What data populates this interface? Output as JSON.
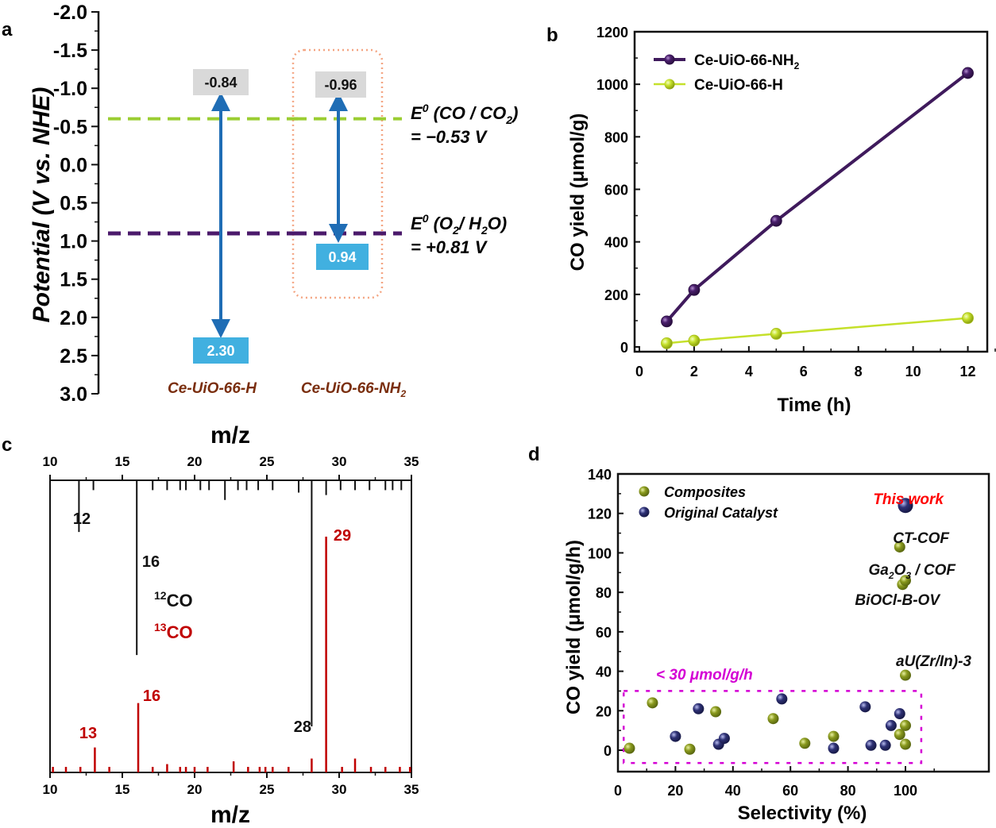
{
  "figure": {
    "panel_labels": [
      "a",
      "b",
      "c",
      "d"
    ]
  },
  "chart_data": [
    {
      "panel": "a",
      "type": "diagram",
      "title": "",
      "ylabel": "Potential (V vs. NHE)",
      "ylim": [
        -2.0,
        3.0
      ],
      "y_inverted": true,
      "yticks": [
        "-2.0",
        "-1.5",
        "-1.0",
        "-0.5",
        "0.0",
        "0.5",
        "1.0",
        "1.5",
        "2.0",
        "2.5",
        "3.0"
      ],
      "reference_lines": [
        {
          "name": "E0 (CO / CO2) = -0.53 V",
          "label_line1": "E0 (CO / CO2)",
          "label_line2": "= −0.53 V",
          "value": -0.53,
          "drawn_at": -0.6,
          "color": "#9ACD32"
        },
        {
          "name": "E0 (O2 / H2O) = +0.81 V",
          "label_line1": "E0 (O2 / H2O)",
          "label_line2": "= +0.81 V",
          "value": 0.81,
          "drawn_at": 0.9,
          "color": "#4B1A6B"
        }
      ],
      "materials": [
        {
          "name": "Ce-UiO-66-H",
          "cb": -0.84,
          "vb": 2.3,
          "cb_label": "-0.84",
          "vb_label": "2.30",
          "highlighted": false
        },
        {
          "name": "Ce-UiO-66-NH2",
          "cb": -0.96,
          "vb": 0.94,
          "cb_label": "-0.96",
          "vb_label": "0.94",
          "highlighted": true
        }
      ],
      "colors": {
        "arrow": "#1F6DB5",
        "cb_box": "#D9D9D9",
        "vb_box": "#41B0E0",
        "material_label": "#7A2E0E",
        "highlight_box": "#F4A582"
      }
    },
    {
      "panel": "b",
      "type": "line",
      "title": "",
      "xlabel": "Time (h)",
      "ylabel": "CO yield (μmol/g)",
      "xlim": [
        0,
        13
      ],
      "ylim": [
        0,
        1200
      ],
      "xticks": [
        0,
        2,
        4,
        6,
        8,
        10,
        12
      ],
      "yticks": [
        0,
        200,
        400,
        600,
        800,
        1000,
        1200
      ],
      "legend": "top-left",
      "series": [
        {
          "name": "Ce-UiO-66-NH2",
          "label_main": "Ce-UiO-66-NH",
          "label_sub": "2",
          "color": "#3F1A5C",
          "x": [
            1,
            2,
            5,
            12
          ],
          "values": [
            97,
            217,
            480,
            1043
          ]
        },
        {
          "name": "Ce-UiO-66-H",
          "label_main": "Ce-UiO-66-H",
          "label_sub": "",
          "color": "#C5E02A",
          "x": [
            1,
            2,
            5,
            12
          ],
          "values": [
            14,
            24,
            50,
            110
          ]
        }
      ]
    },
    {
      "panel": "c",
      "type": "bar",
      "title": "",
      "xlabel_top": "m/z",
      "xlabel_bottom": "m/z",
      "xlim": [
        10,
        35
      ],
      "xticks": [
        10,
        15,
        20,
        25,
        30,
        35
      ],
      "legend_items": [
        {
          "mass": "12",
          "species": "CO",
          "color": "#111111"
        },
        {
          "mass": "13",
          "species": "CO",
          "color": "#C00000"
        }
      ],
      "series": [
        {
          "name": "12CO",
          "color": "#111111",
          "direction": "down-from-top",
          "x": [
            10,
            12,
            13,
            16,
            17.1,
            18.1,
            19,
            19.4,
            20.4,
            21,
            22.1,
            23,
            23.6,
            24.4,
            25.4,
            27.2,
            28.1,
            29.1,
            30.1,
            31.1,
            32.1,
            33.2,
            33.7,
            34.3,
            35
          ],
          "values": [
            0.03,
            0.21,
            0.04,
            0.71,
            0.04,
            0.04,
            0.04,
            0.04,
            0.04,
            0.04,
            0.08,
            0.04,
            0.04,
            0.04,
            0.04,
            0.05,
            1.0,
            0.06,
            0.04,
            0.04,
            0.04,
            0.04,
            0.04,
            0.04,
            0.04
          ],
          "peak_labels": [
            {
              "x": 12,
              "label": "12"
            },
            {
              "x": 16,
              "label": "16"
            },
            {
              "x": 28,
              "label": "28"
            }
          ]
        },
        {
          "name": "13CO",
          "color": "#C00000",
          "direction": "up-from-bottom",
          "x": [
            10.2,
            11.1,
            12.1,
            13.1,
            14.1,
            16.1,
            17.1,
            18.1,
            19,
            19.4,
            20,
            20.9,
            22.7,
            23.7,
            24.5,
            24.9,
            25.4,
            26.5,
            28.1,
            29.1,
            30.2,
            31.1,
            32.2,
            33.2,
            34.2,
            34.9
          ],
          "values": [
            0.02,
            0.02,
            0.02,
            0.09,
            0.02,
            0.25,
            0.02,
            0.03,
            0.02,
            0.02,
            0.02,
            0.02,
            0.04,
            0.02,
            0.02,
            0.02,
            0.02,
            0.02,
            0.05,
            0.85,
            0.02,
            0.05,
            0.02,
            0.02,
            0.02,
            0.02
          ],
          "peak_labels": [
            {
              "x": 13,
              "label": "13"
            },
            {
              "x": 16,
              "label": "16"
            },
            {
              "x": 29,
              "label": "29"
            }
          ]
        }
      ]
    },
    {
      "panel": "d",
      "type": "scatter",
      "title": "",
      "xlabel": "Selectivity (%)",
      "ylabel": "CO yield (μmol/g/h)",
      "xlim": [
        0,
        110
      ],
      "ylim": [
        -10,
        140
      ],
      "xticks": [
        0,
        20,
        40,
        60,
        80,
        100
      ],
      "yticks": [
        0,
        20,
        40,
        60,
        80,
        100,
        120,
        140
      ],
      "legend": "top-left",
      "threshold_box": {
        "label": "< 30 μmol/g/h",
        "y_max": 30,
        "color": "#D400D4"
      },
      "series": [
        {
          "name": "Composites",
          "color": "#8A9A1E",
          "x": [
            4,
            12,
            25,
            34,
            54,
            65,
            75,
            98,
            99,
            100,
            100,
            100,
            98,
            100
          ],
          "values": [
            1,
            24,
            0.5,
            19.5,
            16,
            3.5,
            7,
            103,
            84,
            86,
            38,
            12.5,
            8,
            3
          ]
        },
        {
          "name": "Original Catalyst",
          "color": "#2E3175",
          "x": [
            20,
            28,
            35,
            37,
            57,
            75,
            86,
            88,
            93,
            95,
            98,
            100
          ],
          "values": [
            7,
            21,
            3,
            6,
            26,
            1,
            22,
            2.5,
            2.5,
            12.5,
            18.5,
            124
          ],
          "big_index": 11
        }
      ],
      "annotations": [
        {
          "text": "This work",
          "color": "#FF0000"
        },
        {
          "text": "CT-COF",
          "color": "#111111"
        },
        {
          "text_main": "Ga",
          "sub1": "2",
          "mid": "O",
          "sub2": "3",
          "tail": " / COF",
          "color": "#111111"
        },
        {
          "text": "BiOCl-B-OV",
          "color": "#111111"
        },
        {
          "text": "aU(Zr/In)-3",
          "color": "#111111"
        }
      ]
    }
  ]
}
